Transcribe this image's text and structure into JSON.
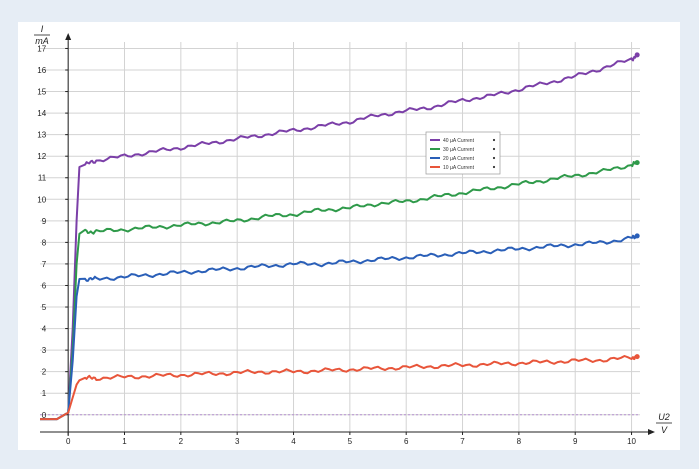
{
  "chart_data": {
    "type": "line",
    "xlabel": "U2",
    "xunit": "V",
    "ylabel": "I",
    "yunit": "mA",
    "xlim": [
      -0.5,
      10.15
    ],
    "ylim": [
      -0.8,
      17.3
    ],
    "xticks": [
      0,
      1,
      2,
      3,
      4,
      5,
      6,
      7,
      8,
      9,
      10
    ],
    "yticks": [
      0,
      1,
      2,
      3,
      4,
      5,
      6,
      7,
      8,
      9,
      10,
      11,
      12,
      13,
      14,
      15,
      16,
      17
    ],
    "grid": true,
    "legend_position": "center-right",
    "series": [
      {
        "name": "40 µA Current",
        "color": "#7b3fa8",
        "x": [
          -0.5,
          -0.2,
          0.0,
          0.08,
          0.15,
          0.2,
          0.3,
          0.5,
          1.0,
          1.5,
          2.0,
          2.5,
          3.0,
          3.5,
          4.0,
          4.5,
          5.0,
          5.5,
          6.0,
          6.5,
          7.0,
          7.5,
          8.0,
          8.5,
          9.0,
          9.5,
          10.0,
          10.1
        ],
        "y": [
          -0.2,
          -0.2,
          0.1,
          4.0,
          9.0,
          11.5,
          11.6,
          11.8,
          12.0,
          12.2,
          12.4,
          12.6,
          12.8,
          13.0,
          13.2,
          13.4,
          13.6,
          13.9,
          14.1,
          14.3,
          14.6,
          14.8,
          15.1,
          15.4,
          15.7,
          16.1,
          16.5,
          16.7
        ]
      },
      {
        "name": "30 µA Current",
        "color": "#2f9a4a",
        "x": [
          -0.5,
          -0.2,
          0.0,
          0.08,
          0.15,
          0.2,
          0.3,
          0.5,
          1.0,
          1.5,
          2.0,
          2.5,
          3.0,
          3.5,
          4.0,
          4.5,
          5.0,
          5.5,
          6.0,
          6.5,
          7.0,
          7.5,
          8.0,
          8.5,
          9.0,
          9.5,
          10.0,
          10.1
        ],
        "y": [
          -0.2,
          -0.2,
          0.1,
          3.0,
          7.0,
          8.4,
          8.5,
          8.5,
          8.6,
          8.7,
          8.8,
          8.9,
          9.0,
          9.2,
          9.3,
          9.5,
          9.6,
          9.8,
          9.9,
          10.1,
          10.3,
          10.5,
          10.7,
          10.9,
          11.1,
          11.3,
          11.6,
          11.7
        ]
      },
      {
        "name": "20 µA Current",
        "color": "#2a5fb8",
        "x": [
          -0.5,
          -0.2,
          0.0,
          0.08,
          0.15,
          0.2,
          0.3,
          0.5,
          1.0,
          1.5,
          2.0,
          2.5,
          3.0,
          3.5,
          4.0,
          4.5,
          5.0,
          5.5,
          6.0,
          6.5,
          7.0,
          7.5,
          8.0,
          8.5,
          9.0,
          9.5,
          10.0,
          10.1
        ],
        "y": [
          -0.2,
          -0.2,
          0.1,
          2.5,
          5.5,
          6.3,
          6.3,
          6.3,
          6.4,
          6.5,
          6.6,
          6.7,
          6.8,
          6.9,
          7.0,
          7.0,
          7.1,
          7.2,
          7.3,
          7.4,
          7.5,
          7.6,
          7.7,
          7.8,
          7.9,
          8.0,
          8.2,
          8.3
        ]
      },
      {
        "name": "10 µA Current",
        "color": "#e8553a",
        "x": [
          -0.5,
          -0.2,
          0.0,
          0.08,
          0.15,
          0.2,
          0.3,
          0.5,
          1.0,
          1.5,
          2.0,
          2.5,
          3.0,
          3.5,
          4.0,
          4.5,
          5.0,
          5.5,
          6.0,
          6.5,
          7.0,
          7.5,
          8.0,
          8.5,
          9.0,
          9.5,
          10.0,
          10.1
        ],
        "y": [
          -0.2,
          -0.2,
          0.1,
          0.8,
          1.4,
          1.6,
          1.7,
          1.7,
          1.75,
          1.8,
          1.85,
          1.9,
          1.95,
          2.0,
          2.0,
          2.05,
          2.1,
          2.15,
          2.2,
          2.25,
          2.3,
          2.35,
          2.4,
          2.45,
          2.5,
          2.55,
          2.65,
          2.7
        ]
      }
    ]
  }
}
